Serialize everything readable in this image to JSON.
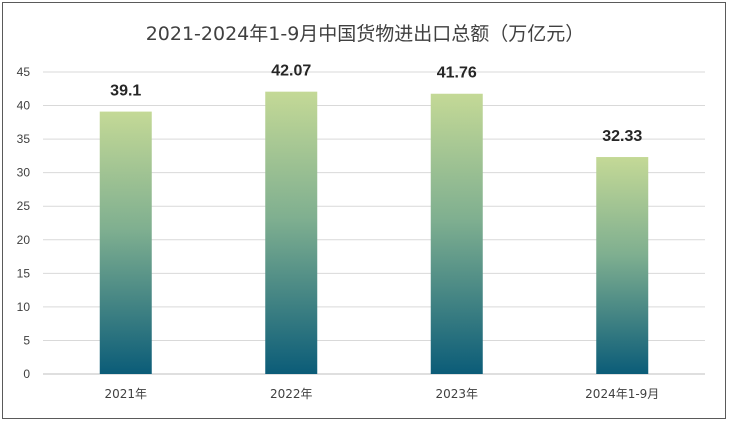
{
  "chart_data": {
    "type": "bar",
    "title": "2021-2024年1-9月中国货物进出口总额（万亿元）",
    "categories": [
      "2021年",
      "2022年",
      "2023年",
      "2024年1-9月"
    ],
    "values": [
      39.1,
      42.07,
      41.76,
      32.33
    ],
    "data_labels": [
      "39.1",
      "42.07",
      "41.76",
      "32.33"
    ],
    "y_ticks": [
      0,
      5,
      10,
      15,
      20,
      25,
      30,
      35,
      40,
      45
    ],
    "ylim": [
      0,
      45
    ],
    "grid": true,
    "legend": "none",
    "colors": {
      "bar_top": "#c4d996",
      "bar_mid": "#7faf90",
      "bar_bottom": "#0b5c78",
      "grid": "#d9d9d9",
      "axis": "#bfbfbf"
    }
  }
}
